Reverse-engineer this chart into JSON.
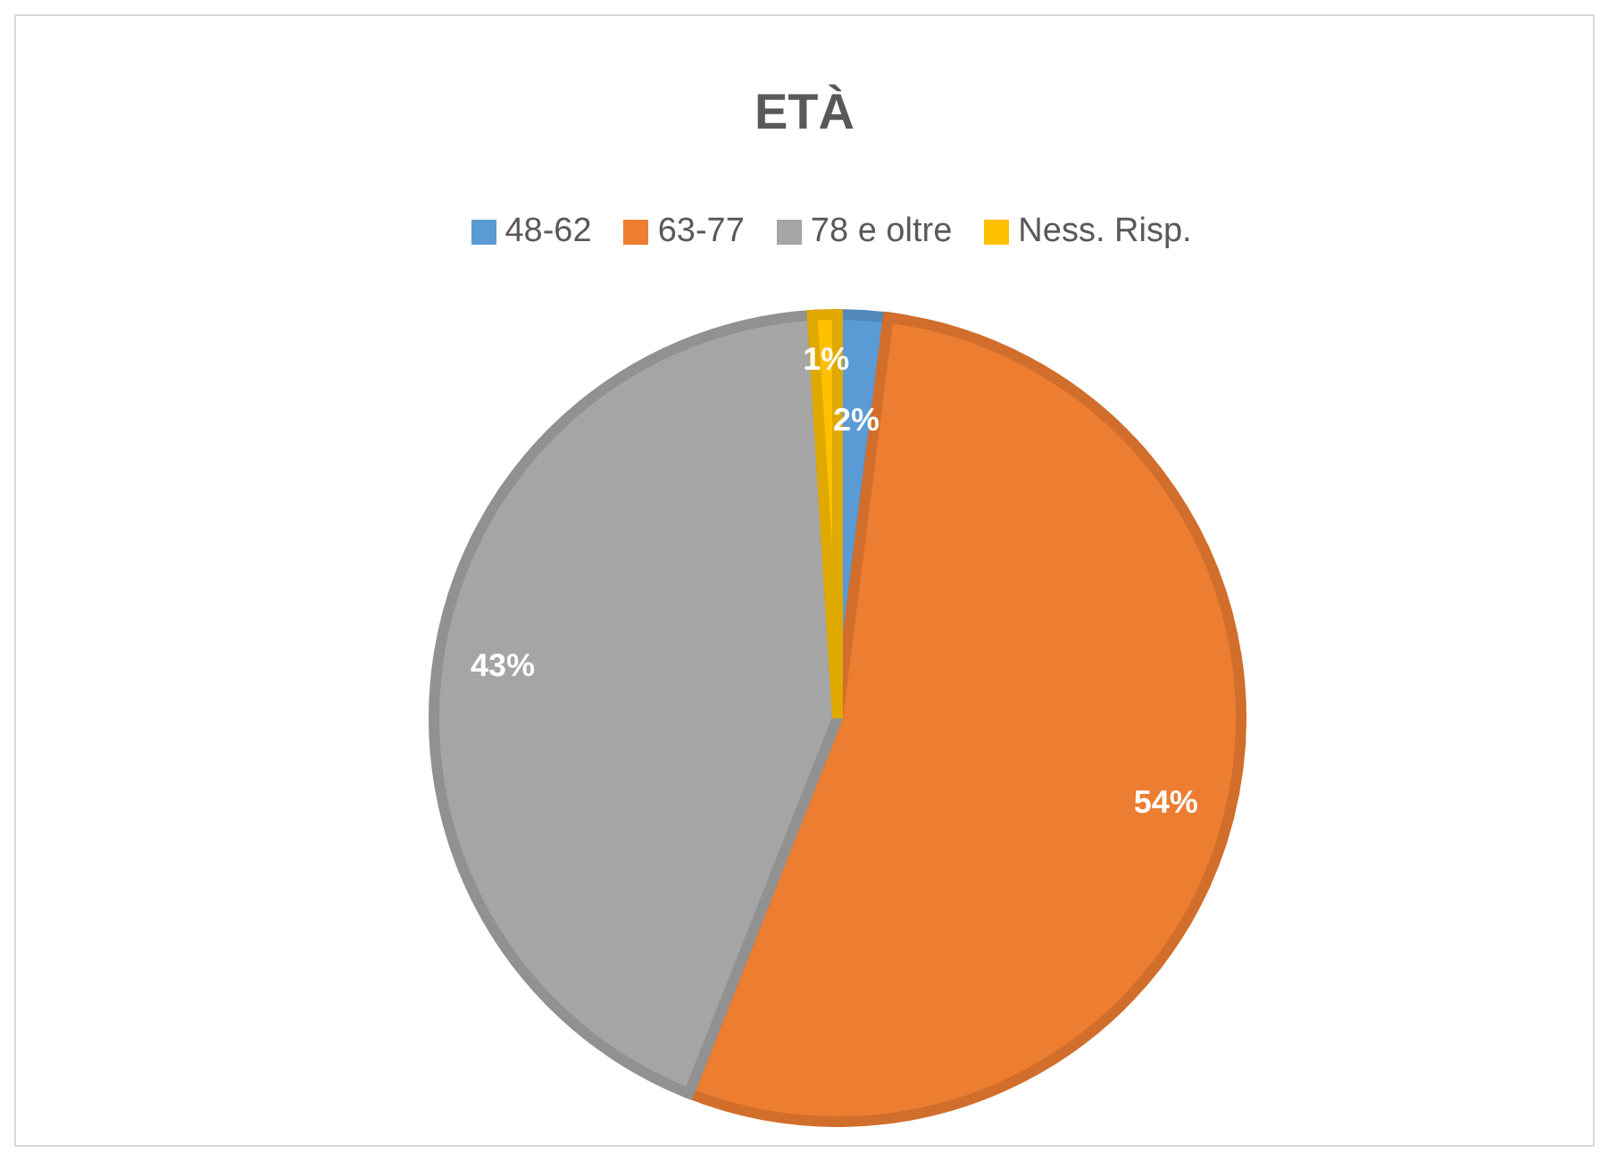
{
  "chart_data": {
    "type": "pie",
    "title": "ETÀ",
    "categories": [
      "48-62",
      "63-77",
      "78 e oltre",
      "Ness. Risp."
    ],
    "values": [
      2,
      54,
      43,
      1
    ],
    "colors": [
      "#5b9bd5",
      "#ed7d31",
      "#a5a5a5",
      "#ffc000"
    ],
    "value_labels": [
      "2%",
      "54%",
      "43%",
      "1%"
    ],
    "legend": "top"
  }
}
